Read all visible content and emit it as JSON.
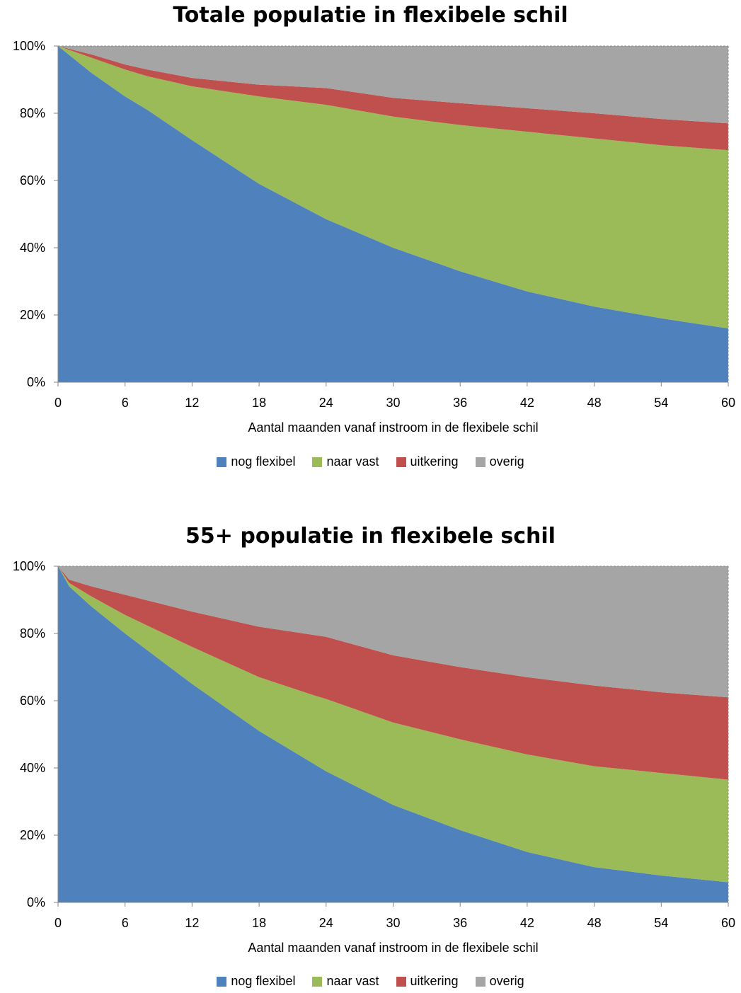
{
  "chart_data": [
    {
      "type": "area",
      "stacked": true,
      "title": "Totale populatie in flexibele schil",
      "xlabel": "Aantal maanden vanaf instroom in de flexibele schil",
      "ylabel": "",
      "xlim": [
        0,
        60
      ],
      "ylim": [
        0,
        100
      ],
      "x_ticks": [
        "0",
        "6",
        "12",
        "18",
        "24",
        "30",
        "36",
        "42",
        "48",
        "54",
        "60"
      ],
      "y_ticks": [
        "0%",
        "20%",
        "40%",
        "60%",
        "80%",
        "100%"
      ],
      "x": [
        0,
        3,
        6,
        8,
        12,
        18,
        24,
        30,
        36,
        42,
        48,
        54,
        60
      ],
      "series": [
        {
          "name": "nog flexibel",
          "color": "#4f81bd",
          "values": [
            100,
            92,
            85,
            81,
            72,
            59,
            48.5,
            40,
            33,
            27,
            22.5,
            19,
            16
          ]
        },
        {
          "name": "naar vast",
          "color": "#9bbb59",
          "values": [
            0,
            4.5,
            8,
            10,
            16,
            26,
            34,
            39,
            43.5,
            47.5,
            50,
            51.5,
            53
          ]
        },
        {
          "name": "uitkering",
          "color": "#c0504d",
          "values": [
            0,
            1,
            1.5,
            2,
            2.5,
            3.5,
            5,
            5.6,
            6.5,
            7,
            7.5,
            7.8,
            8
          ]
        },
        {
          "name": "overig",
          "color": "#a5a5a5",
          "values": [
            0,
            2.5,
            5.5,
            7,
            9.5,
            11.5,
            12.5,
            15.4,
            17,
            18.5,
            20,
            21.7,
            23
          ]
        }
      ],
      "legend": "bottom",
      "grid": false
    },
    {
      "type": "area",
      "stacked": true,
      "title": "55+ populatie in flexibele schil",
      "xlabel": "Aantal maanden vanaf instroom in de flexibele schil",
      "ylabel": "",
      "xlim": [
        0,
        60
      ],
      "ylim": [
        0,
        100
      ],
      "x_ticks": [
        "0",
        "6",
        "12",
        "18",
        "24",
        "30",
        "36",
        "42",
        "48",
        "54",
        "60"
      ],
      "y_ticks": [
        "0%",
        "20%",
        "40%",
        "60%",
        "80%",
        "100%"
      ],
      "x": [
        0,
        1,
        3,
        6,
        12,
        18,
        23,
        24,
        30,
        36,
        42,
        48,
        54,
        60
      ],
      "series": [
        {
          "name": "nog flexibel",
          "color": "#4f81bd",
          "values": [
            100,
            94,
            88,
            80,
            65,
            51,
            41,
            39,
            29,
            21.5,
            15,
            10.5,
            8,
            6
          ]
        },
        {
          "name": "naar vast",
          "color": "#9bbb59",
          "values": [
            0,
            1,
            3,
            5.5,
            11,
            16,
            20.5,
            21.5,
            24.5,
            27,
            29,
            30,
            30.5,
            30.5
          ]
        },
        {
          "name": "uitkering",
          "color": "#c0504d",
          "values": [
            0,
            1,
            3,
            6,
            10.5,
            15,
            18,
            18.5,
            20,
            21.5,
            23,
            24,
            24,
            24.5
          ]
        },
        {
          "name": "overig",
          "color": "#a5a5a5",
          "values": [
            0,
            4,
            6,
            8.5,
            13.5,
            18,
            20.5,
            21,
            26.5,
            30,
            33,
            35.5,
            37.5,
            39
          ]
        }
      ],
      "legend": "bottom",
      "grid": false
    }
  ]
}
